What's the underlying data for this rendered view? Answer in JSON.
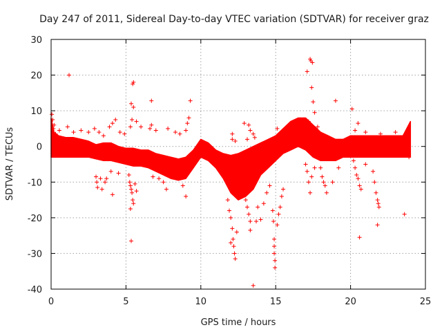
{
  "chart_data": {
    "type": "scatter",
    "title": "Day 247 of 2011, Sidereal Day-to-day VTEC variation (SDTVAR) for receiver graz",
    "xlabel": "GPS time / hours",
    "ylabel": "SDTVAR / TECUs",
    "xlim": [
      0,
      25
    ],
    "ylim": [
      -40,
      30
    ],
    "xticks": [
      "0",
      "5",
      "10",
      "15",
      "20",
      "25"
    ],
    "yticks": [
      "-40",
      "-30",
      "-20",
      "-10",
      "0",
      "10",
      "20",
      "30"
    ],
    "grid": true,
    "marker": "+",
    "color": "#ff0000",
    "series": [
      {
        "name": "SDTVAR",
        "band": {
          "x": [
            0.0,
            0.2,
            0.5,
            1.0,
            1.5,
            2.0,
            2.5,
            3.0,
            3.5,
            4.0,
            4.5,
            5.0,
            5.5,
            6.0,
            6.5,
            7.0,
            7.5,
            8.0,
            8.5,
            9.0,
            9.5,
            10.0,
            10.5,
            11.0,
            11.5,
            12.0,
            12.5,
            13.0,
            13.5,
            14.0,
            14.5,
            15.0,
            15.5,
            16.0,
            16.5,
            17.0,
            17.5,
            18.0,
            18.5,
            19.0,
            19.5,
            20.0,
            20.5,
            21.0,
            21.5,
            22.0,
            22.5,
            23.0,
            23.5,
            24.0
          ],
          "upper": [
            8.0,
            4.0,
            3.0,
            2.5,
            2.5,
            2.0,
            1.5,
            0.5,
            1.0,
            1.0,
            0.0,
            -0.5,
            -0.5,
            -1.0,
            -1.0,
            -2.0,
            -2.5,
            -3.0,
            -3.5,
            -3.0,
            -1.0,
            2.0,
            1.0,
            -1.0,
            -2.0,
            -2.5,
            -2.0,
            -1.0,
            0.0,
            1.0,
            2.0,
            3.0,
            5.0,
            7.0,
            8.0,
            8.0,
            6.0,
            4.0,
            3.0,
            2.0,
            2.0,
            3.0,
            3.0,
            3.0,
            3.0,
            3.0,
            3.0,
            3.0,
            3.0,
            7.0
          ],
          "lower": [
            -3.0,
            -3.0,
            -3.0,
            -3.0,
            -3.0,
            -3.0,
            -3.0,
            -3.5,
            -4.0,
            -4.0,
            -4.5,
            -5.0,
            -5.5,
            -5.5,
            -6.0,
            -7.0,
            -8.0,
            -9.0,
            -9.5,
            -9.0,
            -6.0,
            -3.0,
            -4.0,
            -6.0,
            -9.0,
            -13.0,
            -15.0,
            -14.0,
            -12.0,
            -8.0,
            -6.0,
            -4.0,
            -2.0,
            -1.0,
            0.0,
            -1.0,
            -3.0,
            -4.0,
            -4.0,
            -4.0,
            -3.0,
            -3.0,
            -3.0,
            -3.0,
            -3.0,
            -3.0,
            -3.0,
            -3.0,
            -3.0,
            -3.0
          ]
        },
        "points": [
          [
            0.05,
            9.0
          ],
          [
            0.1,
            7.5
          ],
          [
            0.15,
            5.0
          ],
          [
            0.2,
            6.0
          ],
          [
            0.3,
            3.5
          ],
          [
            0.55,
            4.5
          ],
          [
            1.2,
            20.0
          ],
          [
            1.1,
            5.5
          ],
          [
            1.5,
            4.0
          ],
          [
            2.0,
            4.5
          ],
          [
            2.5,
            4.0
          ],
          [
            2.9,
            5.0
          ],
          [
            3.2,
            4.0
          ],
          [
            3.5,
            3.0
          ],
          [
            3.9,
            5.5
          ],
          [
            4.1,
            6.5
          ],
          [
            4.3,
            7.5
          ],
          [
            4.6,
            4.0
          ],
          [
            4.9,
            3.5
          ],
          [
            5.3,
            5.5
          ],
          [
            5.4,
            7.5
          ],
          [
            5.5,
            18.0
          ],
          [
            5.45,
            17.5
          ],
          [
            5.35,
            12.0
          ],
          [
            5.5,
            11.0
          ],
          [
            5.7,
            7.0
          ],
          [
            6.0,
            5.5
          ],
          [
            6.7,
            12.8
          ],
          [
            6.7,
            6.0
          ],
          [
            6.6,
            5.0
          ],
          [
            7.0,
            4.5
          ],
          [
            7.8,
            5.0
          ],
          [
            8.3,
            4.0
          ],
          [
            8.6,
            3.5
          ],
          [
            9.0,
            4.5
          ],
          [
            9.1,
            6.5
          ],
          [
            9.3,
            12.8
          ],
          [
            9.2,
            8.0
          ],
          [
            3.0,
            -8.5
          ],
          [
            3.05,
            -10.0
          ],
          [
            3.1,
            -11.5
          ],
          [
            3.3,
            -9.0
          ],
          [
            3.4,
            -12.0
          ],
          [
            3.6,
            -10.0
          ],
          [
            3.7,
            -9.0
          ],
          [
            4.0,
            -7.0
          ],
          [
            4.1,
            -13.5
          ],
          [
            4.5,
            -7.5
          ],
          [
            5.2,
            -8.0
          ],
          [
            5.25,
            -10.0
          ],
          [
            5.3,
            -11.0
          ],
          [
            5.35,
            -12.0
          ],
          [
            5.4,
            -13.0
          ],
          [
            5.45,
            -15.0
          ],
          [
            5.5,
            -16.0
          ],
          [
            5.3,
            -17.5
          ],
          [
            5.35,
            -26.5
          ],
          [
            5.6,
            -10.5
          ],
          [
            5.7,
            -12.5
          ],
          [
            6.8,
            -8.5
          ],
          [
            7.2,
            -9.0
          ],
          [
            7.5,
            -10.0
          ],
          [
            7.7,
            -12.0
          ],
          [
            8.0,
            -8.0
          ],
          [
            8.8,
            -11.0
          ],
          [
            9.0,
            -14.0
          ],
          [
            11.8,
            -15.0
          ],
          [
            11.9,
            -18.0
          ],
          [
            12.0,
            -20.0
          ],
          [
            12.1,
            -23.0
          ],
          [
            12.15,
            -26.0
          ],
          [
            12.2,
            -28.0
          ],
          [
            12.25,
            -30.0
          ],
          [
            12.3,
            -31.5
          ],
          [
            12.0,
            -27.0
          ],
          [
            12.4,
            -24.0
          ],
          [
            12.2,
            -3.0
          ],
          [
            12.1,
            2.0
          ],
          [
            12.1,
            3.5
          ],
          [
            12.3,
            1.5
          ],
          [
            12.6,
            -4.0
          ],
          [
            12.8,
            -7.0
          ],
          [
            12.9,
            -12.0
          ],
          [
            13.0,
            -15.0
          ],
          [
            13.1,
            -17.0
          ],
          [
            13.2,
            -19.0
          ],
          [
            13.3,
            -21.0
          ],
          [
            13.3,
            -23.5
          ],
          [
            13.5,
            -39.0
          ],
          [
            13.7,
            -21.0
          ],
          [
            13.8,
            -17.0
          ],
          [
            14.0,
            -20.5
          ],
          [
            14.2,
            -16.0
          ],
          [
            14.4,
            -13.0
          ],
          [
            14.6,
            -11.0
          ],
          [
            14.8,
            -18.0
          ],
          [
            14.85,
            -21.0
          ],
          [
            14.9,
            -26.0
          ],
          [
            14.9,
            -28.0
          ],
          [
            14.9,
            -30.0
          ],
          [
            14.95,
            -32.0
          ],
          [
            14.95,
            -34.0
          ],
          [
            15.1,
            -22.0
          ],
          [
            15.2,
            -19.0
          ],
          [
            15.3,
            -17.0
          ],
          [
            15.4,
            -14.0
          ],
          [
            15.5,
            -12.0
          ],
          [
            12.9,
            6.5
          ],
          [
            13.2,
            6.0
          ],
          [
            13.3,
            4.5
          ],
          [
            13.5,
            3.5
          ],
          [
            13.1,
            2.0
          ],
          [
            13.6,
            2.5
          ],
          [
            15.1,
            5.0
          ],
          [
            15.3,
            3.5
          ],
          [
            15.5,
            4.5
          ],
          [
            17.1,
            21.0
          ],
          [
            17.3,
            24.5
          ],
          [
            17.35,
            24.0
          ],
          [
            17.45,
            23.5
          ],
          [
            17.4,
            16.5
          ],
          [
            17.5,
            12.5
          ],
          [
            17.6,
            9.5
          ],
          [
            17.8,
            5.5
          ],
          [
            17.2,
            7.0
          ],
          [
            19.0,
            12.8
          ],
          [
            20.1,
            10.5
          ],
          [
            20.5,
            6.5
          ],
          [
            21.0,
            4.0
          ],
          [
            20.3,
            4.5
          ],
          [
            22.0,
            3.5
          ],
          [
            23.0,
            4.0
          ],
          [
            17.0,
            -5.0
          ],
          [
            17.1,
            -7.0
          ],
          [
            17.2,
            -10.0
          ],
          [
            17.3,
            -13.0
          ],
          [
            17.4,
            -8.5
          ],
          [
            17.6,
            -6.0
          ],
          [
            18.0,
            -6.0
          ],
          [
            18.1,
            -8.5
          ],
          [
            18.2,
            -10.0
          ],
          [
            18.3,
            -11.0
          ],
          [
            18.4,
            -13.0
          ],
          [
            18.8,
            -10.0
          ],
          [
            19.2,
            -6.0
          ],
          [
            20.2,
            -4.0
          ],
          [
            20.3,
            -6.0
          ],
          [
            20.4,
            -8.0
          ],
          [
            20.5,
            -9.0
          ],
          [
            20.6,
            -11.0
          ],
          [
            20.7,
            -12.0
          ],
          [
            20.6,
            -25.5
          ],
          [
            21.0,
            -5.0
          ],
          [
            21.5,
            -7.0
          ],
          [
            21.6,
            -10.0
          ],
          [
            21.7,
            -13.0
          ],
          [
            21.8,
            -15.0
          ],
          [
            21.85,
            -16.0
          ],
          [
            21.9,
            -17.0
          ],
          [
            21.8,
            -22.0
          ],
          [
            23.6,
            -19.0
          ],
          [
            23.9,
            -3.0
          ]
        ]
      }
    ]
  }
}
